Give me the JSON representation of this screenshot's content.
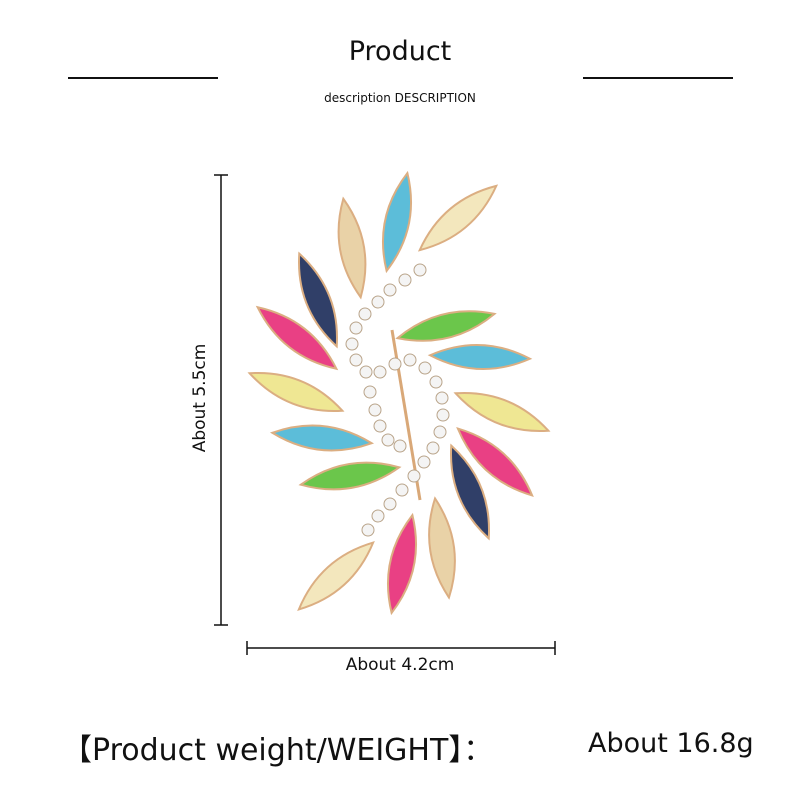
{
  "header": {
    "title": "Product",
    "subtitle": "description DESCRIPTION"
  },
  "dimensions": {
    "height_label": "About 5.5cm",
    "width_label": "About 4.2cm"
  },
  "weight": {
    "label": "【Product weight/WEIGHT】：",
    "value": "About 16.8g"
  },
  "colors": {
    "ab_crystal": "#f3e6b8",
    "aqua": "#4fb8d6",
    "champagne": "#e8cfa0",
    "navy": "#1f2f5c",
    "pink": "#e8307a",
    "yellow": "#eee58a",
    "green": "#5fc23c",
    "gold": "#d9a878"
  }
}
